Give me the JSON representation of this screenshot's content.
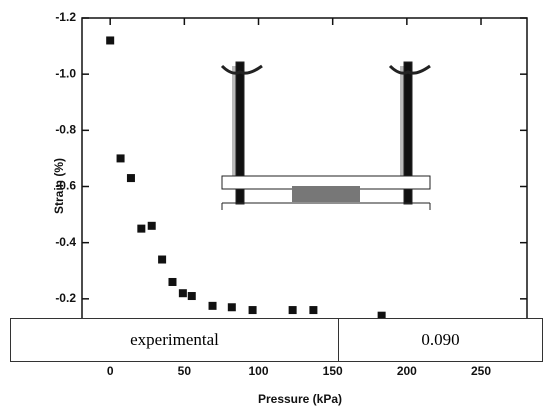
{
  "chart_data": {
    "type": "scatter",
    "xlabel": "Pressure  (kPa)",
    "ylabel": "Strain  (%)",
    "x": [
      0,
      7,
      14,
      21,
      28,
      35,
      42,
      49,
      55,
      69,
      82,
      96,
      123,
      137,
      183
    ],
    "values": [
      -1.12,
      -0.7,
      -0.63,
      -0.45,
      -0.46,
      -0.34,
      -0.26,
      -0.22,
      -0.21,
      -0.175,
      -0.17,
      -0.16,
      -0.16,
      -0.16,
      -0.14
    ],
    "color": "#111111",
    "xlim": [
      -19,
      281
    ],
    "ylim": [
      0,
      -1.2
    ],
    "xticks": [
      0,
      50,
      100,
      150,
      200,
      250
    ],
    "yticks": [
      -1.2,
      {
        "value": -1,
        "label": "-1.0"
      },
      -0.8,
      -0.6,
      -0.4,
      -0.2
    ]
  },
  "table": {
    "rows": [
      [
        "experimental",
        "0.090"
      ]
    ]
  }
}
